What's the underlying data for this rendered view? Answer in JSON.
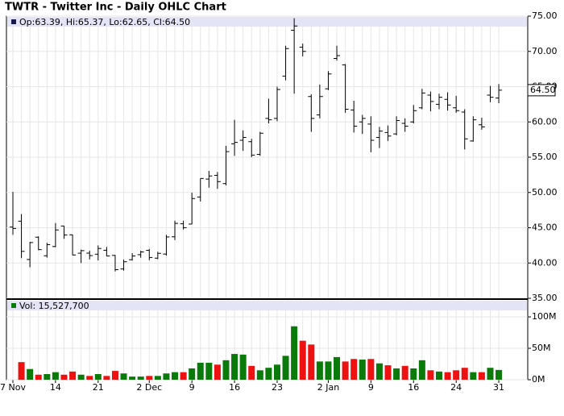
{
  "chart_data": {
    "type": "ohlc",
    "title": "TWTR - Twitter Inc - Daily OHLC Chart",
    "legend": "Op:63.39, Hi:65.37, Lo:62.65, Cl:64.50",
    "categories": [
      "7 Nov",
      null,
      null,
      null,
      null,
      "14",
      null,
      null,
      null,
      null,
      "21",
      null,
      null,
      null,
      null,
      null,
      "2 Dec",
      null,
      null,
      null,
      null,
      "9",
      null,
      null,
      null,
      null,
      "16",
      null,
      null,
      null,
      null,
      "23",
      null,
      null,
      null,
      null,
      null,
      "2 Jan",
      null,
      null,
      null,
      null,
      "9",
      null,
      null,
      null,
      null,
      "16",
      null,
      null,
      null,
      null,
      "24",
      null,
      null,
      null,
      null,
      "31"
    ],
    "open": [
      45.1,
      45.93,
      40.5,
      43.66,
      41.03,
      42.34,
      45.25,
      44.0,
      41.39,
      41.4,
      41.25,
      41.81,
      41.08,
      39.16,
      40.47,
      41.18,
      41.79,
      40.69,
      41.27,
      43.72,
      45.56,
      45.52,
      49.36,
      51.9,
      52.43,
      51.26,
      56.9,
      57.4,
      57.2,
      55.4,
      60.5,
      60.5,
      66.5,
      73.0,
      70.6,
      63.6,
      61.0,
      64.7,
      69.0,
      68.1,
      61.7,
      60.0,
      59.7,
      57.8,
      58.5,
      58.3,
      59.8,
      60.0,
      62.0,
      63.8,
      62.5,
      63.2,
      62.0,
      61.4,
      57.3,
      59.6,
      63.8,
      63.39
    ],
    "high": [
      50.09,
      46.94,
      43.0,
      43.78,
      42.87,
      45.67,
      45.27,
      44.03,
      41.9,
      41.75,
      42.49,
      42.28,
      41.14,
      40.5,
      41.4,
      41.74,
      42.0,
      41.6,
      44.0,
      46.0,
      46.0,
      49.98,
      51.99,
      53.05,
      52.9,
      56.61,
      60.3,
      58.8,
      57.6,
      58.6,
      63.3,
      65.0,
      70.8,
      74.7,
      71.1,
      63.9,
      65.3,
      67.2,
      70.8,
      68.2,
      63.0,
      61.0,
      60.8,
      59.3,
      59.5,
      60.8,
      60.5,
      62.4,
      64.7,
      64.3,
      64.0,
      64.2,
      63.7,
      61.8,
      60.8,
      60.6,
      65.1,
      65.37
    ],
    "low": [
      44.0,
      40.69,
      39.4,
      41.83,
      40.76,
      42.24,
      43.43,
      41.1,
      40.0,
      40.51,
      40.37,
      40.97,
      38.8,
      38.92,
      40.35,
      40.75,
      40.4,
      40.54,
      41.05,
      43.25,
      44.75,
      45.52,
      48.72,
      50.68,
      50.51,
      51.02,
      55.2,
      55.9,
      55.0,
      55.2,
      59.8,
      60.1,
      65.9,
      64.0,
      69.3,
      58.6,
      60.5,
      64.5,
      68.7,
      61.3,
      58.5,
      58.3,
      55.7,
      56.3,
      57.3,
      58.1,
      58.6,
      59.8,
      61.8,
      61.5,
      61.8,
      61.6,
      61.3,
      56.1,
      57.2,
      58.9,
      62.8,
      62.65
    ],
    "close": [
      44.9,
      41.65,
      42.9,
      41.9,
      42.6,
      44.69,
      43.98,
      41.14,
      41.75,
      41.05,
      42.06,
      41.0,
      39.06,
      40.18,
      41.0,
      41.57,
      40.78,
      41.37,
      43.69,
      45.62,
      45.01,
      49.14,
      51.99,
      52.34,
      51.54,
      55.79,
      57.1,
      57.8,
      55.3,
      58.4,
      60.3,
      64.6,
      70.4,
      73.6,
      70.0,
      60.5,
      63.6,
      66.8,
      69.4,
      61.8,
      59.4,
      60.5,
      57.4,
      58.7,
      58.0,
      60.2,
      59.4,
      61.6,
      64.1,
      62.9,
      63.5,
      62.4,
      61.6,
      57.6,
      60.3,
      59.3,
      63.5,
      64.5
    ],
    "color": "#000000",
    "ylim": [
      35,
      75
    ],
    "yticks": [
      {
        "value": 35,
        "label": "35.00"
      },
      {
        "value": 40,
        "label": "40.00"
      },
      {
        "value": 45,
        "label": "45.00"
      },
      {
        "value": 50,
        "label": "50.00"
      },
      {
        "value": 55,
        "label": "55.00"
      },
      {
        "value": 60,
        "label": "60.00"
      },
      {
        "value": 65,
        "label": "65.00"
      },
      {
        "value": 70,
        "label": "70.00"
      },
      {
        "value": 75,
        "label": "75.00"
      }
    ],
    "last_price": {
      "value": 64.5,
      "label": "64.50"
    },
    "grid": true,
    "volume": {
      "type": "bar",
      "legend": "Vol: 15,527,700",
      "values": [
        null,
        28,
        17,
        8,
        9,
        12,
        8,
        13,
        8,
        6,
        9,
        6,
        14,
        10,
        5,
        5,
        6,
        6,
        10,
        12,
        12,
        18,
        27,
        27,
        24,
        31,
        41,
        40,
        22,
        15,
        19,
        24,
        38,
        85,
        62,
        56,
        29,
        29,
        36,
        29,
        33,
        32,
        33,
        26,
        23,
        18,
        22,
        18,
        31,
        15,
        13,
        12,
        15,
        19,
        12,
        12,
        19,
        15.5277
      ],
      "up_color": "#0a7a0a",
      "down_color": "#ee1111",
      "ylim": [
        0,
        127
      ],
      "yticks": [
        {
          "value": 0,
          "label": "0M"
        },
        {
          "value": 50,
          "label": "50M"
        },
        {
          "value": 100,
          "label": "100M"
        }
      ]
    }
  }
}
